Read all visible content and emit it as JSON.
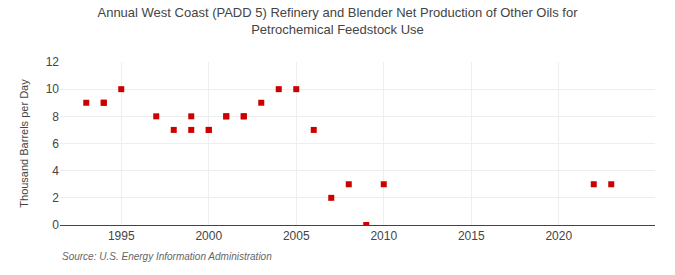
{
  "chart_data": {
    "type": "scatter",
    "title": "Annual West Coast (PADD 5) Refinery and Blender Net Production of Other Oils for\nPetrochemical Feedstock Use",
    "y_label": "Thousand Barrels per Day",
    "annotations": [
      "Source: U.S. Energy Information Administration"
    ],
    "x": [
      1993,
      1994,
      1994,
      1995,
      1997,
      1998,
      1999,
      1999,
      2000,
      2000,
      2001,
      2001,
      2002,
      2002,
      2003,
      2004,
      2005,
      2006,
      2007,
      2008,
      2009,
      2010,
      2022,
      2023
    ],
    "values": [
      9,
      9,
      9,
      10,
      8,
      7,
      8,
      7,
      7,
      7,
      8,
      8,
      8,
      8,
      9,
      10,
      10,
      7,
      2,
      3,
      0,
      3,
      3,
      3
    ],
    "color": "#cc0000",
    "marker": "square",
    "xlim": [
      1991.5,
      2025.5
    ],
    "xticks": [
      1995,
      2000,
      2005,
      2010,
      2015,
      2020
    ],
    "ylim": [
      0,
      12
    ],
    "yticks": [
      0,
      2,
      4,
      6,
      8,
      10,
      12
    ],
    "grid": true
  }
}
